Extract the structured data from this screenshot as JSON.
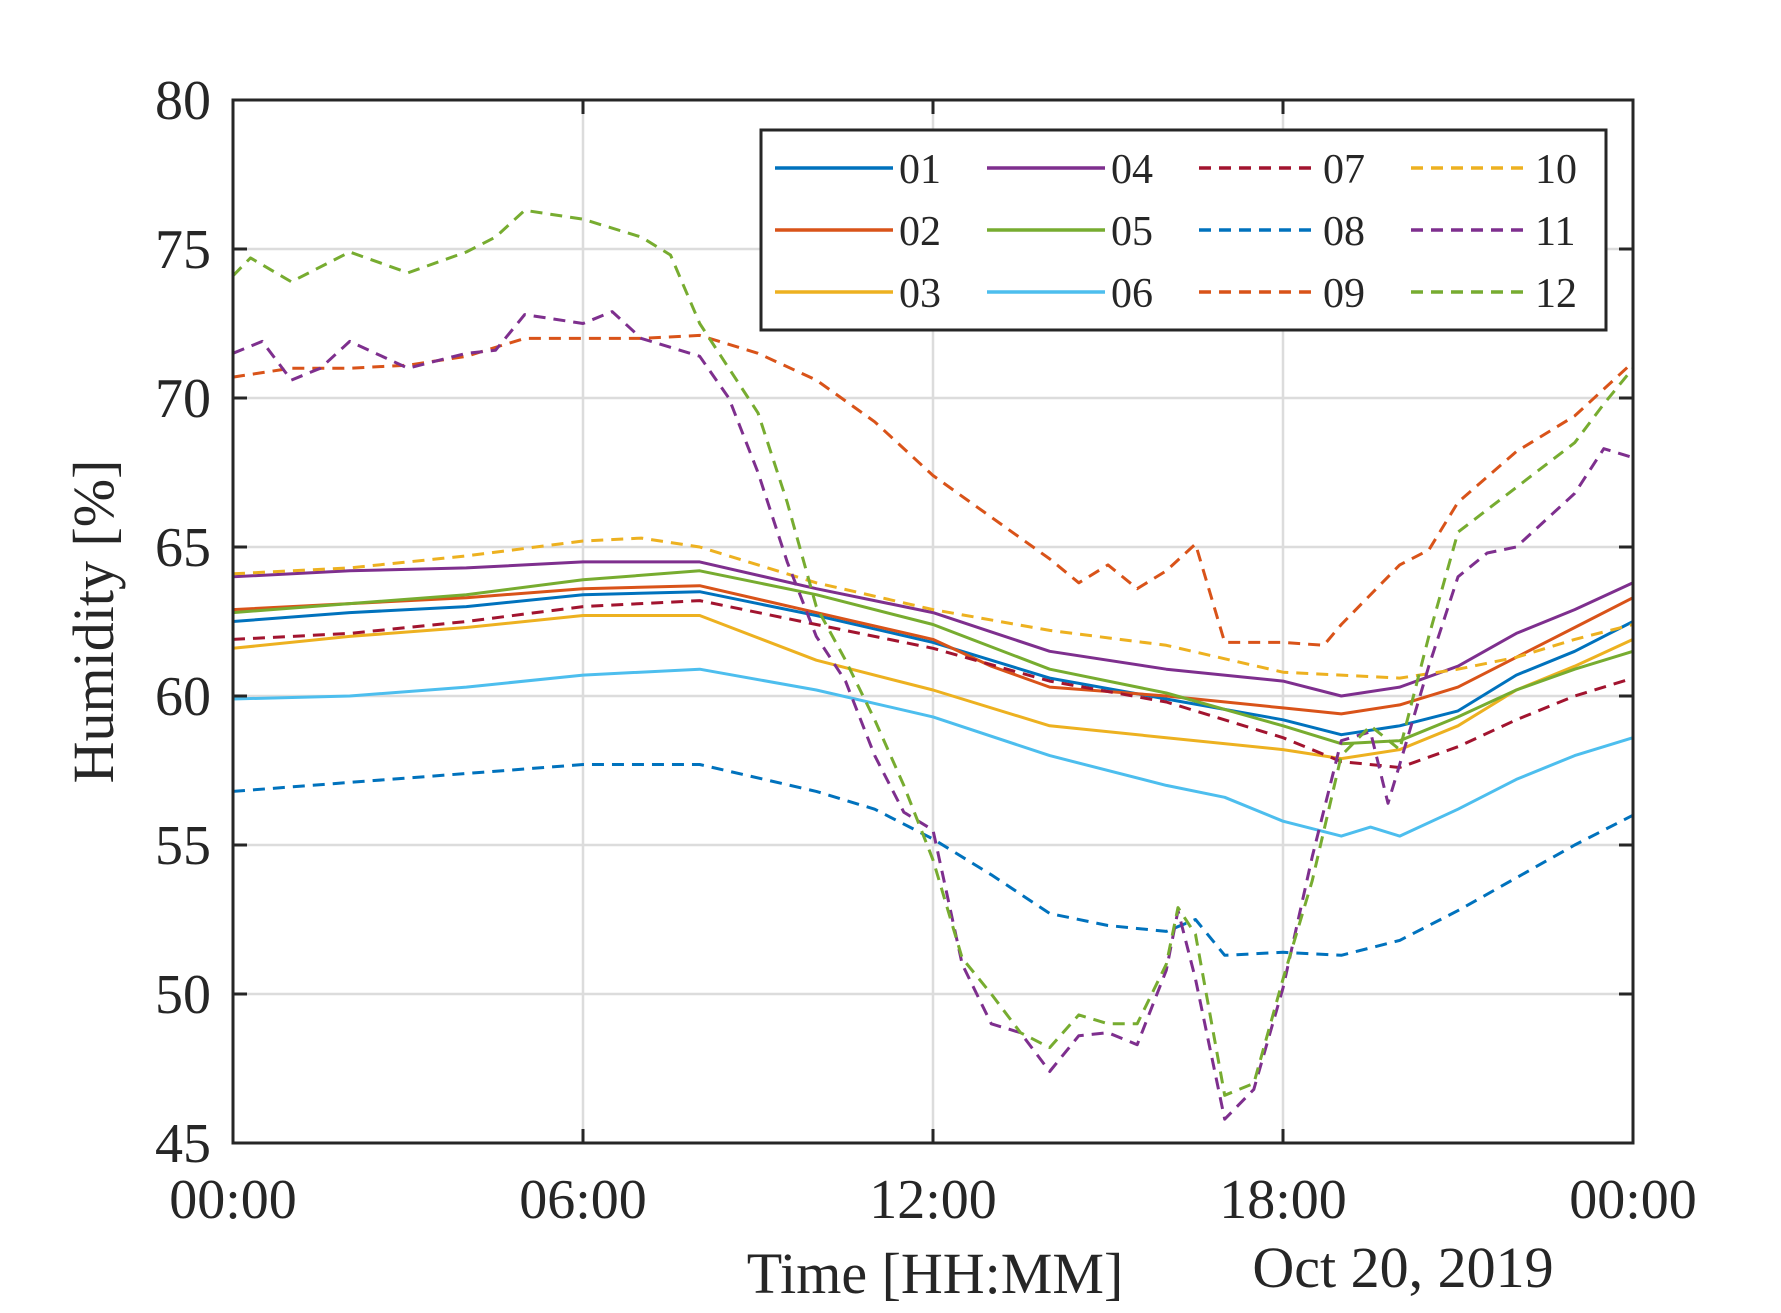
{
  "chart_data": {
    "type": "line",
    "xlabel": "Time [HH:MM]",
    "xlabel_secondary": "Oct 20, 2019",
    "ylabel": "Humidity [%]",
    "xlim": [
      0,
      24
    ],
    "ylim": [
      45,
      80
    ],
    "x_ticks": [
      0,
      6,
      12,
      18,
      24
    ],
    "x_tick_labels": [
      "00:00",
      "06:00",
      "12:00",
      "18:00",
      "00:00"
    ],
    "y_ticks": [
      45,
      50,
      55,
      60,
      65,
      70,
      75,
      80
    ],
    "y_tick_labels": [
      "45",
      "50",
      "55",
      "60",
      "65",
      "70",
      "75",
      "80"
    ],
    "grid": true,
    "legend_position": "top-right",
    "legend_columns": 4,
    "series": [
      {
        "name": "01",
        "color": "#0072BD",
        "dash": "solid",
        "points": [
          [
            0,
            62.5
          ],
          [
            2,
            62.8
          ],
          [
            4,
            63.0
          ],
          [
            6,
            63.4
          ],
          [
            8,
            63.5
          ],
          [
            10,
            62.7
          ],
          [
            12,
            61.8
          ],
          [
            14,
            60.6
          ],
          [
            16,
            59.9
          ],
          [
            18,
            59.2
          ],
          [
            19,
            58.7
          ],
          [
            20,
            59.0
          ],
          [
            21,
            59.5
          ],
          [
            22,
            60.7
          ],
          [
            23,
            61.5
          ],
          [
            24,
            62.5
          ]
        ]
      },
      {
        "name": "02",
        "color": "#D95319",
        "dash": "solid",
        "points": [
          [
            0,
            62.9
          ],
          [
            2,
            63.1
          ],
          [
            4,
            63.3
          ],
          [
            6,
            63.6
          ],
          [
            8,
            63.7
          ],
          [
            10,
            62.8
          ],
          [
            12,
            61.9
          ],
          [
            13,
            61.0
          ],
          [
            14,
            60.3
          ],
          [
            16,
            60.0
          ],
          [
            18,
            59.6
          ],
          [
            19,
            59.4
          ],
          [
            20,
            59.7
          ],
          [
            21,
            60.3
          ],
          [
            22,
            61.3
          ],
          [
            23,
            62.3
          ],
          [
            24,
            63.3
          ]
        ]
      },
      {
        "name": "03",
        "color": "#EDB120",
        "dash": "solid",
        "points": [
          [
            0,
            61.6
          ],
          [
            2,
            62.0
          ],
          [
            4,
            62.3
          ],
          [
            6,
            62.7
          ],
          [
            8,
            62.7
          ],
          [
            10,
            61.2
          ],
          [
            12,
            60.2
          ],
          [
            14,
            59.0
          ],
          [
            16,
            58.6
          ],
          [
            18,
            58.2
          ],
          [
            19,
            57.9
          ],
          [
            20,
            58.2
          ],
          [
            21,
            59.0
          ],
          [
            22,
            60.2
          ],
          [
            23,
            61.0
          ],
          [
            24,
            61.9
          ]
        ]
      },
      {
        "name": "04",
        "color": "#7E2F8E",
        "dash": "solid",
        "points": [
          [
            0,
            64.0
          ],
          [
            2,
            64.2
          ],
          [
            4,
            64.3
          ],
          [
            6,
            64.5
          ],
          [
            8,
            64.5
          ],
          [
            10,
            63.6
          ],
          [
            12,
            62.8
          ],
          [
            14,
            61.5
          ],
          [
            16,
            60.9
          ],
          [
            18,
            60.5
          ],
          [
            19,
            60.0
          ],
          [
            20,
            60.3
          ],
          [
            21,
            61.0
          ],
          [
            22,
            62.1
          ],
          [
            23,
            62.9
          ],
          [
            24,
            63.8
          ]
        ]
      },
      {
        "name": "05",
        "color": "#77AC30",
        "dash": "solid",
        "points": [
          [
            0,
            62.8
          ],
          [
            2,
            63.1
          ],
          [
            4,
            63.4
          ],
          [
            6,
            63.9
          ],
          [
            8,
            64.2
          ],
          [
            10,
            63.4
          ],
          [
            12,
            62.4
          ],
          [
            14,
            60.9
          ],
          [
            16,
            60.1
          ],
          [
            18,
            59.0
          ],
          [
            19,
            58.4
          ],
          [
            20,
            58.5
          ],
          [
            21,
            59.3
          ],
          [
            22,
            60.2
          ],
          [
            23,
            60.9
          ],
          [
            24,
            61.5
          ]
        ]
      },
      {
        "name": "06",
        "color": "#4DBEEE",
        "dash": "solid",
        "points": [
          [
            0,
            59.9
          ],
          [
            2,
            60.0
          ],
          [
            4,
            60.3
          ],
          [
            6,
            60.7
          ],
          [
            8,
            60.9
          ],
          [
            10,
            60.2
          ],
          [
            12,
            59.3
          ],
          [
            14,
            58.0
          ],
          [
            16,
            57.0
          ],
          [
            17,
            56.6
          ],
          [
            18,
            55.8
          ],
          [
            19,
            55.3
          ],
          [
            19.5,
            55.6
          ],
          [
            20,
            55.3
          ],
          [
            21,
            56.2
          ],
          [
            22,
            57.2
          ],
          [
            23,
            58.0
          ],
          [
            24,
            58.6
          ]
        ]
      },
      {
        "name": "07",
        "color": "#A2142F",
        "dash": "dashed",
        "points": [
          [
            0,
            61.9
          ],
          [
            2,
            62.1
          ],
          [
            4,
            62.5
          ],
          [
            6,
            63.0
          ],
          [
            8,
            63.2
          ],
          [
            10,
            62.4
          ],
          [
            12,
            61.6
          ],
          [
            14,
            60.5
          ],
          [
            16,
            59.8
          ],
          [
            18,
            58.6
          ],
          [
            19,
            57.8
          ],
          [
            20,
            57.6
          ],
          [
            21,
            58.3
          ],
          [
            22,
            59.2
          ],
          [
            23,
            60.0
          ],
          [
            24,
            60.6
          ]
        ]
      },
      {
        "name": "08",
        "color": "#0072BD",
        "dash": "dashed",
        "points": [
          [
            0,
            56.8
          ],
          [
            2,
            57.1
          ],
          [
            4,
            57.4
          ],
          [
            6,
            57.7
          ],
          [
            8,
            57.7
          ],
          [
            10,
            56.8
          ],
          [
            11,
            56.2
          ],
          [
            12,
            55.2
          ],
          [
            13,
            54.0
          ],
          [
            14,
            52.7
          ],
          [
            15,
            52.3
          ],
          [
            16,
            52.1
          ],
          [
            16.5,
            52.5
          ],
          [
            17,
            51.3
          ],
          [
            18,
            51.4
          ],
          [
            19,
            51.3
          ],
          [
            20,
            51.8
          ],
          [
            21,
            52.8
          ],
          [
            22,
            53.9
          ],
          [
            23,
            55.0
          ],
          [
            24,
            56.0
          ]
        ]
      },
      {
        "name": "09",
        "color": "#D95319",
        "dash": "dashed",
        "points": [
          [
            0,
            70.7
          ],
          [
            1,
            71.0
          ],
          [
            2,
            71.0
          ],
          [
            3,
            71.1
          ],
          [
            4,
            71.4
          ],
          [
            5,
            72.0
          ],
          [
            6,
            72.0
          ],
          [
            7,
            72.0
          ],
          [
            8,
            72.1
          ],
          [
            9,
            71.5
          ],
          [
            10,
            70.6
          ],
          [
            11,
            69.2
          ],
          [
            12,
            67.4
          ],
          [
            13,
            66.0
          ],
          [
            14,
            64.6
          ],
          [
            14.5,
            63.8
          ],
          [
            15,
            64.4
          ],
          [
            15.5,
            63.6
          ],
          [
            16,
            64.2
          ],
          [
            16.5,
            65.1
          ],
          [
            17,
            61.8
          ],
          [
            18,
            61.8
          ],
          [
            18.7,
            61.7
          ],
          [
            19,
            62.4
          ],
          [
            20,
            64.4
          ],
          [
            20.5,
            64.9
          ],
          [
            21,
            66.5
          ],
          [
            22,
            68.2
          ],
          [
            23,
            69.4
          ],
          [
            24,
            71.2
          ]
        ]
      },
      {
        "name": "10",
        "color": "#EDB120",
        "dash": "dashed",
        "points": [
          [
            0,
            64.1
          ],
          [
            2,
            64.3
          ],
          [
            4,
            64.7
          ],
          [
            6,
            65.2
          ],
          [
            7,
            65.3
          ],
          [
            8,
            65.0
          ],
          [
            10,
            63.8
          ],
          [
            12,
            62.9
          ],
          [
            14,
            62.2
          ],
          [
            16,
            61.7
          ],
          [
            18,
            60.8
          ],
          [
            19,
            60.7
          ],
          [
            20,
            60.6
          ],
          [
            21,
            60.9
          ],
          [
            22,
            61.3
          ],
          [
            23,
            61.9
          ],
          [
            24,
            62.4
          ]
        ]
      },
      {
        "name": "11",
        "color": "#7E2F8E",
        "dash": "dashed",
        "points": [
          [
            0,
            71.5
          ],
          [
            0.5,
            71.9
          ],
          [
            1,
            70.6
          ],
          [
            1.5,
            71.0
          ],
          [
            2,
            71.9
          ],
          [
            3,
            71.0
          ],
          [
            4,
            71.5
          ],
          [
            4.5,
            71.6
          ],
          [
            5,
            72.8
          ],
          [
            6,
            72.5
          ],
          [
            6.5,
            72.9
          ],
          [
            7,
            72.0
          ],
          [
            8,
            71.4
          ],
          [
            8.5,
            70.0
          ],
          [
            9,
            67.5
          ],
          [
            9.5,
            64.5
          ],
          [
            10,
            62.0
          ],
          [
            10.5,
            60.5
          ],
          [
            11,
            58.0
          ],
          [
            11.5,
            56.1
          ],
          [
            12,
            55.5
          ],
          [
            12.5,
            51.0
          ],
          [
            13,
            49.0
          ],
          [
            13.5,
            48.7
          ],
          [
            14,
            47.4
          ],
          [
            14.5,
            48.6
          ],
          [
            15,
            48.7
          ],
          [
            15.5,
            48.3
          ],
          [
            16,
            50.8
          ],
          [
            16.2,
            52.8
          ],
          [
            16.5,
            50.5
          ],
          [
            17,
            45.8
          ],
          [
            17.5,
            46.8
          ],
          [
            18,
            50.2
          ],
          [
            18.5,
            54.6
          ],
          [
            19,
            58.5
          ],
          [
            19.5,
            58.8
          ],
          [
            19.8,
            56.4
          ],
          [
            20,
            57.7
          ],
          [
            20.5,
            61.0
          ],
          [
            21,
            64.0
          ],
          [
            21.5,
            64.8
          ],
          [
            22,
            65.0
          ],
          [
            23,
            66.8
          ],
          [
            23.5,
            68.3
          ],
          [
            24,
            68.0
          ]
        ]
      },
      {
        "name": "12",
        "color": "#77AC30",
        "dash": "dashed",
        "points": [
          [
            0,
            74.1
          ],
          [
            0.3,
            74.7
          ],
          [
            1,
            73.9
          ],
          [
            2,
            74.9
          ],
          [
            3,
            74.2
          ],
          [
            4,
            74.9
          ],
          [
            4.5,
            75.4
          ],
          [
            5,
            76.3
          ],
          [
            6,
            76.0
          ],
          [
            7,
            75.4
          ],
          [
            7.5,
            74.8
          ],
          [
            8,
            72.5
          ],
          [
            8.5,
            71.0
          ],
          [
            9,
            69.5
          ],
          [
            9.5,
            66.5
          ],
          [
            10,
            63.0
          ],
          [
            10.5,
            61.2
          ],
          [
            11,
            59.2
          ],
          [
            11.5,
            57.0
          ],
          [
            12,
            54.5
          ],
          [
            12.5,
            51.2
          ],
          [
            13,
            50.0
          ],
          [
            13.5,
            48.7
          ],
          [
            14,
            48.2
          ],
          [
            14.5,
            49.3
          ],
          [
            15,
            49.0
          ],
          [
            15.5,
            49.0
          ],
          [
            16,
            51.0
          ],
          [
            16.2,
            52.9
          ],
          [
            16.5,
            52.0
          ],
          [
            17,
            46.6
          ],
          [
            17.5,
            47.0
          ],
          [
            18,
            50.5
          ],
          [
            18.5,
            53.8
          ],
          [
            19,
            58.0
          ],
          [
            19.5,
            59.0
          ],
          [
            20,
            58.2
          ],
          [
            20.5,
            62.0
          ],
          [
            21,
            65.5
          ],
          [
            22,
            67.0
          ],
          [
            23,
            68.5
          ],
          [
            23.5,
            69.8
          ],
          [
            24,
            71.0
          ]
        ]
      }
    ]
  }
}
